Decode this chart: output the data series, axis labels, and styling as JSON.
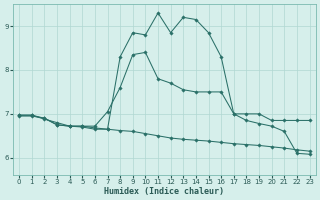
{
  "xlabel": "Humidex (Indice chaleur)",
  "x_ticks": [
    0,
    1,
    2,
    3,
    4,
    5,
    6,
    7,
    8,
    9,
    10,
    11,
    12,
    13,
    14,
    15,
    16,
    17,
    18,
    19,
    20,
    21,
    22,
    23
  ],
  "ylim": [
    5.6,
    9.5
  ],
  "xlim": [
    -0.5,
    23.5
  ],
  "y_ticks": [
    6,
    7,
    8,
    9
  ],
  "bg_color": "#d6efeb",
  "grid_color": "#b0d8d2",
  "line_color": "#2a7068",
  "series1_x": [
    0,
    1,
    2,
    3,
    4,
    5,
    6,
    7,
    8,
    9,
    10,
    11,
    12,
    13,
    14,
    15,
    16,
    17,
    18,
    19,
    20,
    21,
    22,
    23
  ],
  "series1_y": [
    6.95,
    6.95,
    6.9,
    6.75,
    6.72,
    6.72,
    6.68,
    6.65,
    8.3,
    8.85,
    8.8,
    9.3,
    8.85,
    9.2,
    9.15,
    8.85,
    8.3,
    7.0,
    6.85,
    6.78,
    6.72,
    6.6,
    6.1,
    6.08
  ],
  "series2_x": [
    0,
    1,
    2,
    3,
    4,
    5,
    6,
    7,
    8,
    9,
    10,
    11,
    12,
    13,
    14,
    15,
    16,
    17,
    18,
    19,
    20,
    21,
    22,
    23
  ],
  "series2_y": [
    6.97,
    6.97,
    6.9,
    6.75,
    6.72,
    6.72,
    6.72,
    7.05,
    7.6,
    8.35,
    8.4,
    7.8,
    7.7,
    7.55,
    7.5,
    7.5,
    7.5,
    7.0,
    7.0,
    7.0,
    6.85,
    6.85,
    6.85,
    6.85
  ],
  "series3_x": [
    0,
    1,
    2,
    3,
    4,
    5,
    6,
    7,
    8,
    9,
    10,
    11,
    12,
    13,
    14,
    15,
    16,
    17,
    18,
    19,
    20,
    21,
    22,
    23
  ],
  "series3_y": [
    6.97,
    6.97,
    6.88,
    6.8,
    6.72,
    6.7,
    6.65,
    6.65,
    6.62,
    6.6,
    6.55,
    6.5,
    6.45,
    6.42,
    6.4,
    6.38,
    6.35,
    6.32,
    6.3,
    6.28,
    6.25,
    6.22,
    6.18,
    6.15
  ]
}
